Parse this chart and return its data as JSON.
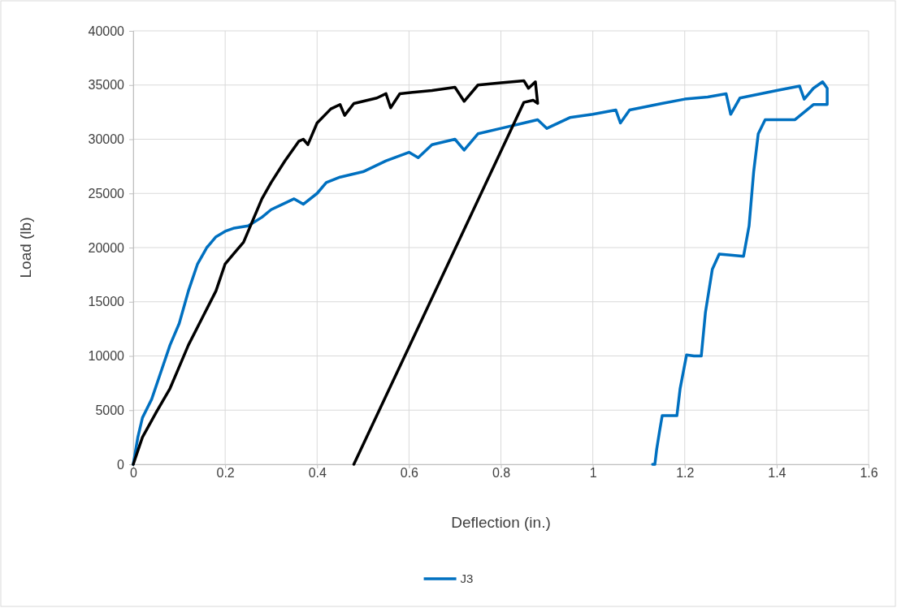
{
  "chart_data": {
    "type": "line",
    "xlabel": "Deflection (in.)",
    "ylabel": "Load (lb)",
    "xlim": [
      0,
      1.6
    ],
    "xticks": [
      0,
      0.2,
      0.4,
      0.6,
      0.8,
      1,
      1.2,
      1.4,
      1.6
    ],
    "ylim": [
      0,
      40000
    ],
    "yticks": [
      0,
      5000,
      10000,
      15000,
      20000,
      25000,
      30000,
      35000,
      40000
    ],
    "grid": true,
    "legend": "bottom",
    "marker": "none",
    "line_style": "solid",
    "series": [
      {
        "name": "J3",
        "color": "#0070c0",
        "x": [
          0,
          0.01,
          0.02,
          0.04,
          0.06,
          0.08,
          0.1,
          0.12,
          0.14,
          0.16,
          0.18,
          0.2,
          0.22,
          0.25,
          0.28,
          0.3,
          0.35,
          0.37,
          0.4,
          0.42,
          0.45,
          0.5,
          0.55,
          0.6,
          0.62,
          0.65,
          0.7,
          0.72,
          0.75,
          0.8,
          0.85,
          0.88,
          0.9,
          0.95,
          1.0,
          1.05,
          1.06,
          1.08,
          1.15,
          1.2,
          1.25,
          1.29,
          1.3,
          1.32,
          1.4,
          1.45,
          1.46,
          1.48,
          1.5,
          1.51,
          1.51,
          1.48,
          1.44,
          1.375,
          1.36,
          1.35,
          1.34,
          1.328,
          1.3,
          1.275,
          1.26,
          1.245,
          1.236,
          1.22,
          1.204,
          1.19,
          1.183,
          1.151,
          1.145,
          1.139,
          1.135,
          1.13
        ],
        "values": [
          0,
          2500,
          4300,
          6000,
          8500,
          11000,
          13000,
          16000,
          18500,
          20000,
          21000,
          21500,
          21800,
          22000,
          22800,
          23500,
          24500,
          24000,
          25000,
          26000,
          26500,
          27000,
          28000,
          28800,
          28300,
          29500,
          30000,
          29000,
          30500,
          31000,
          31500,
          31800,
          31000,
          32000,
          32300,
          32700,
          31500,
          32700,
          33300,
          33700,
          33900,
          34200,
          32300,
          33800,
          34500,
          34900,
          33700,
          34700,
          35300,
          34700,
          33200,
          33200,
          31800,
          31800,
          30500,
          27000,
          22000,
          19200,
          19300,
          19400,
          18000,
          14000,
          10000,
          10000,
          10100,
          7000,
          4500,
          4500,
          3000,
          1400,
          0,
          0
        ]
      },
      {
        "color": "#000000",
        "x": [
          0,
          0.02,
          0.05,
          0.08,
          0.1,
          0.12,
          0.15,
          0.18,
          0.2,
          0.22,
          0.24,
          0.26,
          0.28,
          0.3,
          0.33,
          0.36,
          0.37,
          0.38,
          0.4,
          0.43,
          0.45,
          0.46,
          0.48,
          0.53,
          0.55,
          0.56,
          0.58,
          0.65,
          0.7,
          0.72,
          0.75,
          0.8,
          0.85,
          0.86,
          0.875,
          0.88,
          0.87,
          0.85,
          0.48
        ],
        "values": [
          0,
          2500,
          4800,
          7000,
          9000,
          11000,
          13500,
          16000,
          18500,
          19500,
          20500,
          22500,
          24500,
          26000,
          28000,
          29800,
          30000,
          29500,
          31500,
          32800,
          33200,
          32200,
          33300,
          33800,
          34200,
          32900,
          34200,
          34500,
          34800,
          33500,
          35000,
          35200,
          35400,
          34700,
          35300,
          33300,
          33600,
          33400,
          0
        ]
      }
    ]
  }
}
